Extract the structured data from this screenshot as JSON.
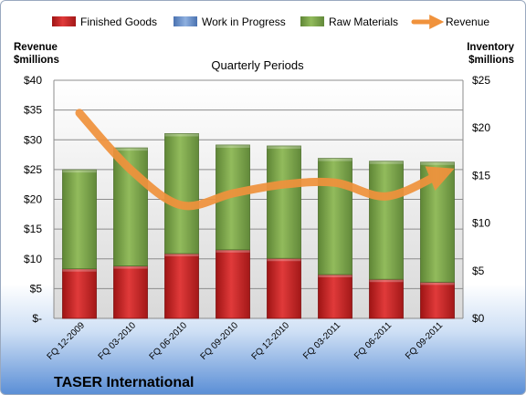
{
  "chart_data": {
    "type": "bar",
    "title": "Quarterly Periods",
    "company": "TASER International",
    "left_axis_label": [
      "Revenue",
      "$millions"
    ],
    "right_axis_label": [
      "Inventory",
      "$millions"
    ],
    "categories": [
      "FQ 12-2009",
      "FQ 03-2010",
      "FQ 06-2010",
      "FQ 09-2010",
      "FQ 12-2010",
      "FQ 03-2011",
      "FQ 06-2011",
      "FQ 09-2011"
    ],
    "left_axis": {
      "min": 0,
      "max": 40,
      "step": 5,
      "tick_labels": [
        "$-",
        "$5",
        "$10",
        "$15",
        "$20",
        "$25",
        "$30",
        "$35",
        "$40"
      ]
    },
    "right_axis": {
      "min": 0,
      "max": 25,
      "step": 5,
      "tick_labels": [
        "$0",
        "$5",
        "$10",
        "$15",
        "$20",
        "$25"
      ]
    },
    "legend": {
      "placement": "top"
    },
    "grid": true,
    "series": [
      {
        "name": "Finished Goods",
        "type": "bar",
        "axis": "right",
        "color": "#cc2222",
        "values": [
          5.2,
          5.5,
          6.8,
          7.2,
          6.3,
          4.6,
          4.1,
          3.8
        ]
      },
      {
        "name": "Work in Progress",
        "type": "bar",
        "axis": "right",
        "color": "#6f95d0",
        "values": [
          0,
          0,
          0,
          0,
          0,
          0,
          0,
          0
        ]
      },
      {
        "name": "Raw Materials",
        "type": "bar",
        "axis": "right",
        "color": "#7da64a",
        "values": [
          10.4,
          12.4,
          12.6,
          11.0,
          11.8,
          12.2,
          12.4,
          12.6
        ]
      },
      {
        "name": "Revenue",
        "type": "line",
        "axis": "left",
        "color": "#f0923c",
        "values": [
          34.5,
          25.0,
          19.0,
          21.0,
          22.5,
          22.8,
          20.5,
          24.0
        ]
      }
    ]
  }
}
